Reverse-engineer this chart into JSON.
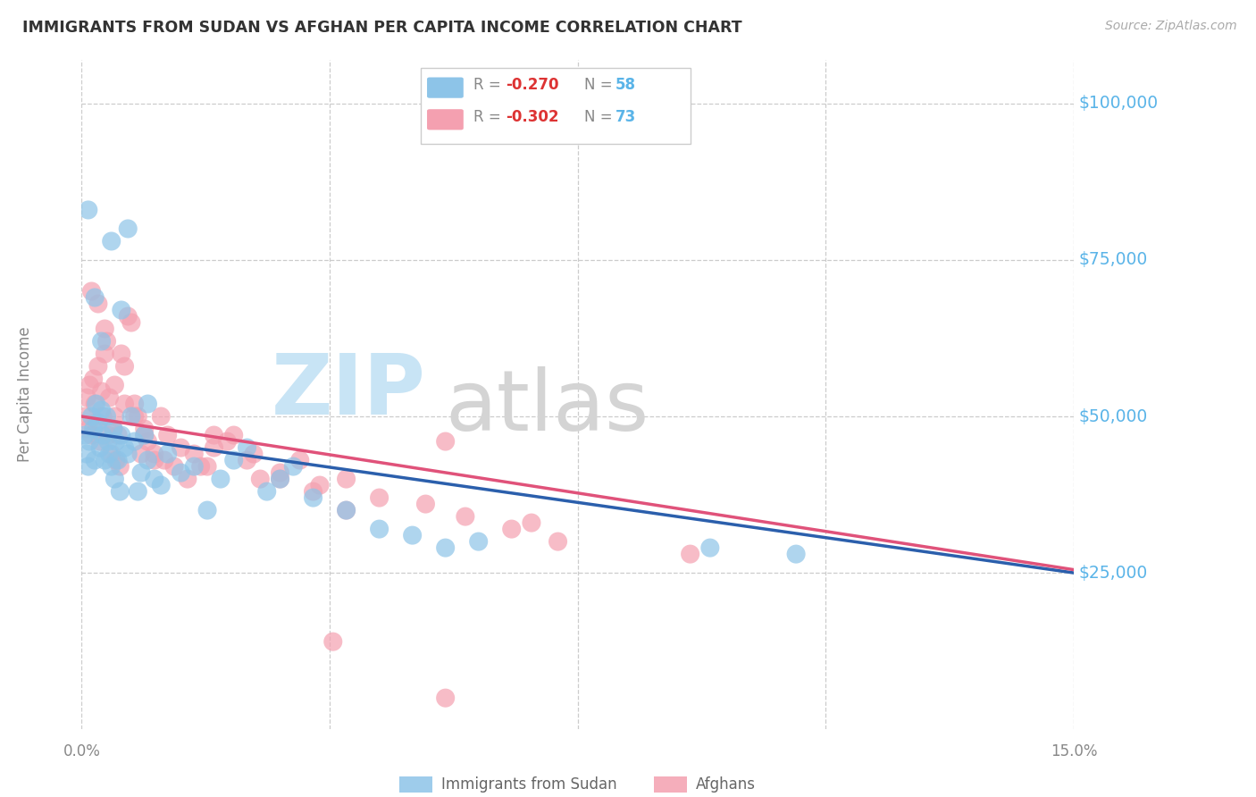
{
  "title": "IMMIGRANTS FROM SUDAN VS AFGHAN PER CAPITA INCOME CORRELATION CHART",
  "source": "Source: ZipAtlas.com",
  "ylabel": "Per Capita Income",
  "ytick_labels": [
    "$25,000",
    "$50,000",
    "$75,000",
    "$100,000"
  ],
  "ytick_values": [
    25000,
    50000,
    75000,
    100000
  ],
  "xmin": 0.0,
  "xmax": 15.0,
  "ymin": 0,
  "ymax": 107000,
  "blue_r": "-0.270",
  "blue_n": "58",
  "pink_r": "-0.302",
  "pink_n": "73",
  "blue_scatter_color": "#8dc4e8",
  "pink_scatter_color": "#f4a0b0",
  "blue_line_color": "#2b5fac",
  "pink_line_color": "#e0527a",
  "label_color": "#5ab4e8",
  "sudan_x": [
    0.05,
    0.08,
    0.1,
    0.12,
    0.15,
    0.18,
    0.2,
    0.22,
    0.25,
    0.28,
    0.3,
    0.32,
    0.35,
    0.38,
    0.4,
    0.42,
    0.45,
    0.48,
    0.5,
    0.52,
    0.55,
    0.58,
    0.6,
    0.65,
    0.7,
    0.75,
    0.8,
    0.85,
    0.9,
    0.95,
    1.0,
    1.1,
    1.2,
    1.3,
    1.5,
    1.7,
    1.9,
    2.1,
    2.3,
    2.5,
    2.8,
    3.0,
    3.2,
    3.5,
    4.0,
    4.5,
    5.0,
    5.5,
    6.0,
    9.5,
    10.8,
    0.1,
    0.2,
    0.3,
    0.45,
    0.6,
    0.7,
    1.0
  ],
  "sudan_y": [
    47000,
    44000,
    42000,
    46000,
    50000,
    48000,
    43000,
    52000,
    49000,
    45000,
    51000,
    47000,
    43000,
    50000,
    46000,
    44000,
    42000,
    48000,
    40000,
    46000,
    43000,
    38000,
    47000,
    45000,
    44000,
    50000,
    46000,
    38000,
    41000,
    47000,
    43000,
    40000,
    39000,
    44000,
    41000,
    42000,
    35000,
    40000,
    43000,
    45000,
    38000,
    40000,
    42000,
    37000,
    35000,
    32000,
    31000,
    29000,
    30000,
    29000,
    28000,
    83000,
    69000,
    62000,
    78000,
    67000,
    80000,
    52000
  ],
  "afghan_x": [
    0.05,
    0.08,
    0.1,
    0.12,
    0.15,
    0.18,
    0.2,
    0.22,
    0.25,
    0.28,
    0.3,
    0.32,
    0.35,
    0.38,
    0.4,
    0.42,
    0.45,
    0.48,
    0.5,
    0.52,
    0.55,
    0.58,
    0.6,
    0.65,
    0.7,
    0.75,
    0.8,
    0.85,
    0.9,
    0.95,
    1.0,
    1.1,
    1.2,
    1.3,
    1.5,
    1.7,
    1.9,
    2.0,
    2.2,
    2.5,
    2.7,
    3.0,
    3.3,
    3.6,
    4.0,
    4.5,
    5.2,
    5.8,
    6.5,
    7.2,
    9.2,
    0.15,
    0.25,
    0.35,
    0.5,
    0.65,
    0.8,
    0.95,
    1.1,
    1.25,
    1.4,
    1.6,
    1.8,
    2.0,
    2.3,
    2.6,
    3.0,
    3.5,
    4.0,
    5.5,
    6.8,
    5.5,
    3.8
  ],
  "afghan_y": [
    50000,
    53000,
    48000,
    55000,
    47000,
    56000,
    52000,
    49000,
    58000,
    46000,
    54000,
    50000,
    64000,
    62000,
    47000,
    53000,
    44000,
    48000,
    50000,
    43000,
    47000,
    42000,
    60000,
    58000,
    66000,
    65000,
    52000,
    50000,
    44000,
    48000,
    46000,
    43000,
    50000,
    47000,
    45000,
    44000,
    42000,
    47000,
    46000,
    43000,
    40000,
    41000,
    43000,
    39000,
    40000,
    37000,
    36000,
    34000,
    32000,
    30000,
    28000,
    70000,
    68000,
    60000,
    55000,
    52000,
    50000,
    47000,
    44000,
    43000,
    42000,
    40000,
    42000,
    45000,
    47000,
    44000,
    40000,
    38000,
    35000,
    46000,
    33000,
    5000,
    14000
  ]
}
